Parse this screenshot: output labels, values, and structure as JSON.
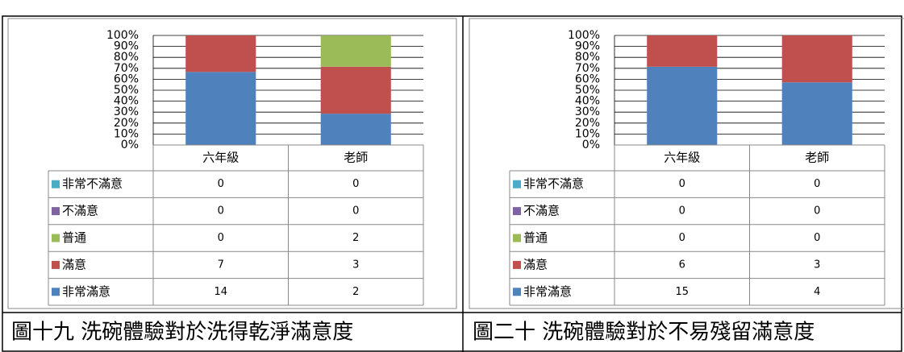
{
  "chart_data": [
    {
      "type": "bar",
      "stacked": "percent",
      "grid": true,
      "categories": [
        "六年級",
        "老師"
      ],
      "series": [
        {
          "name": "非常不滿意",
          "color": "#4bacc6",
          "values": [
            0,
            0
          ]
        },
        {
          "name": "不滿意",
          "color": "#8064a2",
          "values": [
            0,
            0
          ]
        },
        {
          "name": "普通",
          "color": "#9bbb59",
          "values": [
            0,
            2
          ]
        },
        {
          "name": "滿意",
          "color": "#c0504d",
          "values": [
            7,
            3
          ]
        },
        {
          "name": "非常滿意",
          "color": "#4f81bd",
          "values": [
            14,
            2
          ]
        }
      ],
      "ylim": [
        0,
        100
      ],
      "yticks": [
        {
          "value": 0,
          "label": "0%"
        },
        {
          "value": 10,
          "label": "10%"
        },
        {
          "value": 20,
          "label": "20%"
        },
        {
          "value": 30,
          "label": "30%"
        },
        {
          "value": 40,
          "label": "40%"
        },
        {
          "value": 50,
          "label": "50%"
        },
        {
          "value": 60,
          "label": "60%"
        },
        {
          "value": 70,
          "label": "70%"
        },
        {
          "value": 80,
          "label": "80%"
        },
        {
          "value": 90,
          "label": "90%"
        },
        {
          "value": 100,
          "label": "100%"
        }
      ],
      "caption": "圖十九 洗碗體驗對於洗得乾淨滿意度"
    },
    {
      "type": "bar",
      "stacked": "percent",
      "grid": true,
      "categories": [
        "六年級",
        "老師"
      ],
      "series": [
        {
          "name": "非常不滿意",
          "color": "#4bacc6",
          "values": [
            0,
            0
          ]
        },
        {
          "name": "不滿意",
          "color": "#8064a2",
          "values": [
            0,
            0
          ]
        },
        {
          "name": "普通",
          "color": "#9bbb59",
          "values": [
            0,
            0
          ]
        },
        {
          "name": "滿意",
          "color": "#c0504d",
          "values": [
            6,
            3
          ]
        },
        {
          "name": "非常滿意",
          "color": "#4f81bd",
          "values": [
            15,
            4
          ]
        }
      ],
      "ylim": [
        0,
        100
      ],
      "yticks": [
        {
          "value": 0,
          "label": "0%"
        },
        {
          "value": 10,
          "label": "10%"
        },
        {
          "value": 20,
          "label": "20%"
        },
        {
          "value": 30,
          "label": "30%"
        },
        {
          "value": 40,
          "label": "40%"
        },
        {
          "value": 50,
          "label": "50%"
        },
        {
          "value": 60,
          "label": "60%"
        },
        {
          "value": 70,
          "label": "70%"
        },
        {
          "value": 80,
          "label": "80%"
        },
        {
          "value": 90,
          "label": "90%"
        },
        {
          "value": 100,
          "label": "100%"
        }
      ],
      "caption": "圖二十 洗碗體驗對於不易殘留滿意度"
    }
  ]
}
